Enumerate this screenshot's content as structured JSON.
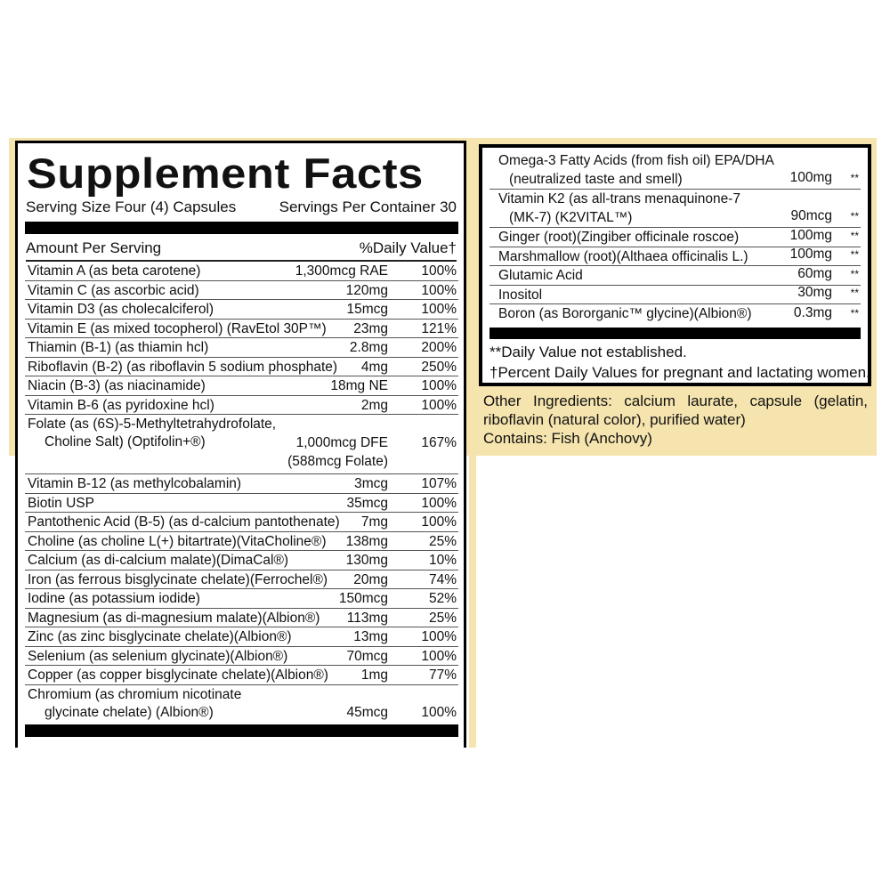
{
  "colors": {
    "background_cream": "#f5e4ae",
    "rule": "#000000"
  },
  "title": "Supplement Facts",
  "serving_size": "Serving Size Four (4) Capsules",
  "servings_per_container": "Servings Per Container 30",
  "header": {
    "amount": "Amount Per Serving",
    "daily_value": "%Daily Value†"
  },
  "nutrients": [
    {
      "name": "Vitamin A (as beta carotene)",
      "amount": "1,300mcg RAE",
      "dv": "100%"
    },
    {
      "name": "Vitamin C (as ascorbic acid)",
      "amount": "120mg",
      "dv": "100%"
    },
    {
      "name": "Vitamin D3 (as cholecalciferol)",
      "amount": "15mcg",
      "dv": "100%"
    },
    {
      "name": "Vitamin E  (as mixed tocopherol) (RavEtol 30P™)",
      "amount": "23mg",
      "dv": "121%"
    },
    {
      "name": "Thiamin (B-1) (as thiamin hcl)",
      "amount": "2.8mg",
      "dv": "200%"
    },
    {
      "name": "Riboflavin (B-2) (as riboflavin 5 sodium phosphate)",
      "amount": "4mg",
      "dv": "250%"
    },
    {
      "name": "Niacin (B-3) (as niacinamide)",
      "amount": "18mg NE",
      "dv": "100%"
    },
    {
      "name": "Vitamin B-6 (as pyridoxine hcl)",
      "amount": "2mg",
      "dv": "100%"
    },
    {
      "name": "Folate (as (6S)-5-Methyltetrahydrofolate,",
      "name2": "Choline Salt) (Optifolin+®)",
      "amount": "1,000mcg DFE",
      "amount2": "(588mcg Folate)",
      "dv": "167%"
    },
    {
      "name": "Vitamin B-12 (as methylcobalamin)",
      "amount": "3mcg",
      "dv": "107%"
    },
    {
      "name": "Biotin USP",
      "amount": "35mcg",
      "dv": "100%"
    },
    {
      "name": "Pantothenic Acid (B-5) (as d-calcium pantothenate)",
      "amount": "7mg",
      "dv": "100%"
    },
    {
      "name": "Choline (as choline L(+) bitartrate)(VitaCholine®)",
      "amount": "138mg",
      "dv": "25%"
    },
    {
      "name": "Calcium (as di-calcium malate)(DimaCal®)",
      "amount": "130mg",
      "dv": "10%"
    },
    {
      "name": "Iron (as ferrous bisglycinate chelate)(Ferrochel®)",
      "amount": "20mg",
      "dv": "74%"
    },
    {
      "name": "Iodine (as potassium iodide)",
      "amount": "150mcg",
      "dv": "52%"
    },
    {
      "name": "Magnesium (as di-magnesium malate)(Albion®)",
      "amount": "113mg",
      "dv": "25%"
    },
    {
      "name": "Zinc (as zinc bisglycinate chelate)(Albion®)",
      "amount": "13mg",
      "dv": "100%"
    },
    {
      "name": "Selenium (as selenium glycinate)(Albion®)",
      "amount": "70mcg",
      "dv": "100%"
    },
    {
      "name": "Copper (as copper bisglycinate chelate)(Albion®)",
      "amount": "1mg",
      "dv": "77%"
    },
    {
      "name": "Chromium (as chromium nicotinate",
      "name2": "glycinate chelate) (Albion®)",
      "amount": "45mcg",
      "dv": "100%"
    }
  ],
  "other_nutrients": [
    {
      "name": "Omega-3 Fatty Acids (from fish oil) EPA/DHA",
      "name2": "(neutralized taste and smell)",
      "amount": "100mg",
      "dv": "**"
    },
    {
      "name": "Vitamin K2 (as all-trans menaquinone-7",
      "name2": "(MK-7) (K2VITAL™)",
      "amount": "90mcg",
      "dv": "**"
    },
    {
      "name": "Ginger (root)(Zingiber officinale roscoe)",
      "amount": "100mg",
      "dv": "**"
    },
    {
      "name": "Marshmallow (root)(Althaea officinalis L.)",
      "amount": "100mg",
      "dv": "**"
    },
    {
      "name": "Glutamic Acid",
      "amount": "60mg",
      "dv": "**"
    },
    {
      "name": "Inositol",
      "amount": "30mg",
      "dv": "**"
    },
    {
      "name": "Boron (as Bororganic™ glycine)(Albion®)",
      "amount": "0.3mg",
      "dv": "**"
    }
  ],
  "footnotes": [
    "**Daily Value not established.",
    "†Percent Daily Values for pregnant and lactating women."
  ],
  "other_ingredients": "Other Ingredients: calcium laurate, capsule (gelatin, riboflavin (natural color), purified water)",
  "contains": "Contains: Fish (Anchovy)"
}
